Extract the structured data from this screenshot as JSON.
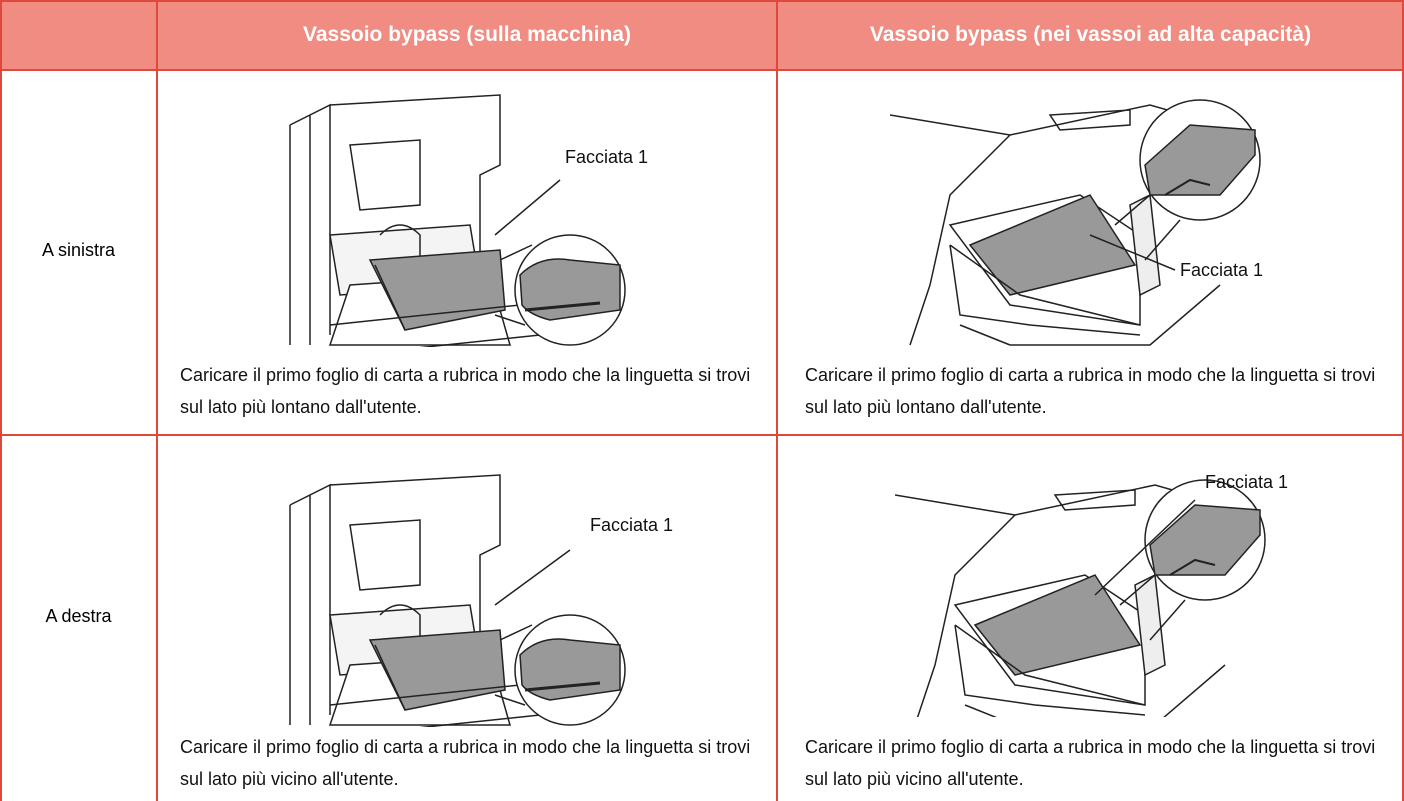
{
  "table": {
    "header": {
      "columns": [
        "Vassoio bypass (sulla macchina)",
        "Vassoio bypass (nei vassoi ad alta capacità)"
      ]
    },
    "rows": [
      {
        "label": "A sinistra",
        "cells": [
          {
            "callout": "Facciata 1",
            "caption": "Caricare il primo foglio di carta a rubrica in modo che la linguetta si trovi sul lato più lontano dall'utente."
          },
          {
            "callout": "Facciata 1",
            "caption": "Caricare il primo foglio di carta a rubrica in modo che la linguetta si trovi sul lato più lontano dall'utente."
          }
        ]
      },
      {
        "label": "A destra",
        "cells": [
          {
            "callout": "Facciata 1",
            "caption": "Caricare il primo foglio di carta a rubrica in modo che la linguetta si trovi sul lato più vicino all'utente."
          },
          {
            "callout": "Facciata 1",
            "caption": "Caricare il primo foglio di carta a rubrica in modo che la linguetta si trovi sul lato più vicino all'utente."
          }
        ]
      }
    ]
  }
}
